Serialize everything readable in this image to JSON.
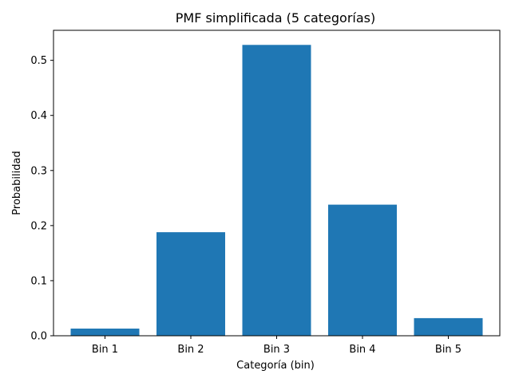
{
  "chart_data": {
    "type": "bar",
    "title": "PMF simplificada (5 categorías)",
    "xlabel": "Categoría (bin)",
    "ylabel": "Probabilidad",
    "categories": [
      "Bin 1",
      "Bin 2",
      "Bin 3",
      "Bin 4",
      "Bin 5"
    ],
    "values": [
      0.013,
      0.188,
      0.528,
      0.238,
      0.032
    ],
    "ylim": [
      0,
      0.5545
    ],
    "yticks": [
      "0.0",
      "0.1",
      "0.2",
      "0.3",
      "0.4",
      "0.5"
    ],
    "bar_color": "#1f77b4",
    "grid": false,
    "legend": "none"
  }
}
